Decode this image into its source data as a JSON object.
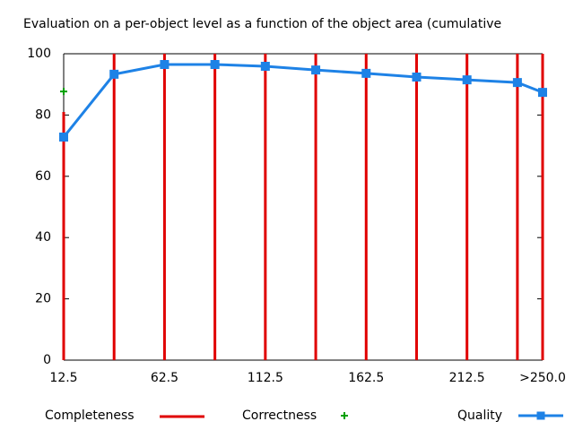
{
  "chart_data": {
    "type": "impulse-line",
    "title": "Evaluation on a per-object level as a function of the object area (cumulative",
    "xlim": [
      12.5,
      250
    ],
    "xticks": [
      12.5,
      62.5,
      112.5,
      162.5,
      212.5,
      {
        "value": 250,
        "label": ">250.0"
      }
    ],
    "ylim": [
      0,
      100
    ],
    "yticks": [
      0,
      20,
      40,
      60,
      80,
      100
    ],
    "x": [
      12.5,
      37.5,
      62.5,
      87.5,
      112.5,
      137.5,
      162.5,
      187.5,
      212.5,
      237.5,
      250
    ],
    "series": [
      {
        "name": "Completeness",
        "color": "#e00000",
        "style": "impulses",
        "values": [
          81,
          100,
          100,
          100,
          100,
          100,
          100,
          100,
          100,
          100,
          100
        ]
      },
      {
        "name": "Correctness",
        "color": "#00a000",
        "style": "points",
        "values": [
          87.7,
          93.3,
          96.5,
          96.5,
          95.9,
          94.7,
          93.6,
          92.4,
          91.5,
          90.6,
          87.4
        ]
      },
      {
        "name": "Quality",
        "color": "#1e82e6",
        "style": "linespoints",
        "values": [
          72.8,
          93.3,
          96.5,
          96.5,
          95.9,
          94.7,
          93.6,
          92.4,
          91.5,
          90.6,
          87.4
        ]
      }
    ]
  }
}
